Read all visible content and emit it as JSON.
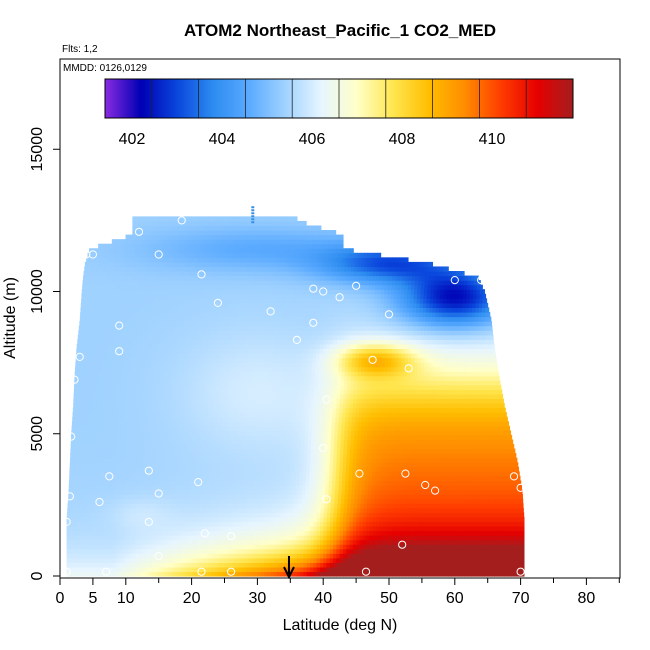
{
  "chart_data": {
    "type": "heatmap",
    "title": "ATOM2 Northeast_Pacific_1 CO2_MED",
    "flights_label": "Flts: 1,2",
    "dates_label": "MMDD: 0126,0129",
    "xlabel": "Latitude (deg N)",
    "ylabel": "Altitude (m)",
    "xlim": [
      0,
      85
    ],
    "ylim": [
      0,
      17500
    ],
    "xticks": [
      0,
      5,
      10,
      20,
      30,
      40,
      50,
      60,
      70,
      80
    ],
    "yticks": [
      0,
      5000,
      10000,
      15000
    ],
    "colorbar": {
      "min": 401.4,
      "max": 411.8,
      "ticks": [
        402,
        404,
        406,
        408,
        410
      ],
      "colors": [
        "#8a2be2",
        "#0000b4",
        "#0a46dc",
        "#2d8cf0",
        "#5aaaff",
        "#a0d2ff",
        "#e6f5ff",
        "#ffffc8",
        "#ffe650",
        "#ffbe00",
        "#ff8c00",
        "#ff3c00",
        "#e60000",
        "#a51e1e"
      ]
    },
    "colorbar_ticks_text": [
      "402",
      "404",
      "406",
      "408",
      "410"
    ],
    "curtain_profile": [
      {
        "alt": 0,
        "lat_min": 1,
        "lat_max": 70.5
      },
      {
        "alt": 2000,
        "lat_min": 1,
        "lat_max": 70.5
      },
      {
        "alt": 3000,
        "lat_min": 1.3,
        "lat_max": 70.2
      },
      {
        "alt": 4000,
        "lat_min": 1.5,
        "lat_max": 69.5
      },
      {
        "alt": 5000,
        "lat_min": 1.7,
        "lat_max": 68.5
      },
      {
        "alt": 6000,
        "lat_min": 2,
        "lat_max": 67.5
      },
      {
        "alt": 7000,
        "lat_min": 2.2,
        "lat_max": 66.7
      },
      {
        "alt": 8000,
        "lat_min": 2.5,
        "lat_max": 66
      },
      {
        "alt": 9000,
        "lat_min": 3,
        "lat_max": 65.5
      },
      {
        "alt": 10000,
        "lat_min": 3.3,
        "lat_max": 64.5
      },
      {
        "alt": 10500,
        "lat_min": 3.5,
        "lat_max": 63.5
      },
      {
        "alt": 11000,
        "lat_min": 3.8,
        "lat_max": 56
      },
      {
        "alt": 11500,
        "lat_min": 4.5,
        "lat_max": 43
      },
      {
        "alt": 12000,
        "lat_min": 11,
        "lat_max": 43
      },
      {
        "alt": 12500,
        "lat_min": 11,
        "lat_max": 36
      }
    ],
    "sample_points": [
      [
        1,
        150
      ],
      [
        7,
        150
      ],
      [
        15,
        700
      ],
      [
        21.5,
        150
      ],
      [
        26,
        150
      ],
      [
        46.5,
        150
      ],
      [
        52,
        1100
      ],
      [
        70,
        150
      ],
      [
        1,
        1900
      ],
      [
        13.5,
        1900
      ],
      [
        22,
        1500
      ],
      [
        26,
        1400
      ],
      [
        1.5,
        2800
      ],
      [
        6,
        2600
      ],
      [
        15,
        2900
      ],
      [
        21,
        3300
      ],
      [
        40.5,
        2700
      ],
      [
        55.5,
        3200
      ],
      [
        57,
        3000
      ],
      [
        69,
        3500
      ],
      [
        70,
        3100
      ],
      [
        7.5,
        3500
      ],
      [
        13.5,
        3700
      ],
      [
        45.5,
        3600
      ],
      [
        52.5,
        3600
      ],
      [
        1.7,
        4900
      ],
      [
        40,
        4500
      ],
      [
        40.5,
        6200
      ],
      [
        2.2,
        6900
      ],
      [
        9,
        7900
      ],
      [
        3,
        7700
      ],
      [
        47.5,
        7600
      ],
      [
        53,
        7300
      ],
      [
        36,
        8300
      ],
      [
        9,
        8800
      ],
      [
        38.5,
        8900
      ],
      [
        50,
        9200
      ],
      [
        24,
        9600
      ],
      [
        32,
        9300
      ],
      [
        42.5,
        9800
      ],
      [
        38.5,
        10100
      ],
      [
        40,
        10000
      ],
      [
        45,
        10200
      ],
      [
        60,
        10400
      ],
      [
        64,
        10400
      ],
      [
        21.5,
        10600
      ],
      [
        4,
        11300
      ],
      [
        5,
        11300
      ],
      [
        15,
        11300
      ],
      [
        12,
        12100
      ],
      [
        18.5,
        12500
      ]
    ],
    "top_profile_marker": {
      "lat": 29.3,
      "alt_min": 12400,
      "alt_max": 13000
    },
    "arrow_marker": {
      "lat": 34.8,
      "alt": 0
    }
  }
}
